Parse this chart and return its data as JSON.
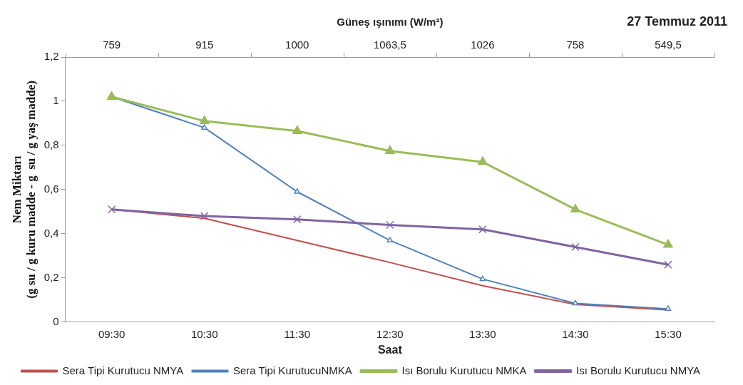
{
  "chart_data": {
    "type": "line",
    "title": "27 Temmuz 2011",
    "xlabel": "Saat",
    "ylabel": "Nem Miktarı\n(g su / g kuru madde - g  su / g yaş madde)",
    "x2label": "Güneş ışınımı (W/m²)",
    "categories": [
      "09:30",
      "10:30",
      "11:30",
      "12:30",
      "13:30",
      "14:30",
      "15:30"
    ],
    "series": [
      {
        "name": "Sera Tipi Kurutucu NMYA",
        "color": "#c0504d",
        "marker": "none",
        "values": [
          0.51,
          0.47,
          0.37,
          0.27,
          0.165,
          0.08,
          0.055
        ]
      },
      {
        "name": "Sera Tipi KurutucuNMKA",
        "color": "#4f81bd",
        "marker": "triangle",
        "values": [
          1.02,
          0.88,
          0.59,
          0.37,
          0.195,
          0.085,
          0.06
        ]
      },
      {
        "name": "Isı Borulu Kurutucu NMKA",
        "color": "#9bbb59",
        "marker": "triangle",
        "values": [
          1.02,
          0.91,
          0.865,
          0.775,
          0.725,
          0.51,
          0.35
        ]
      },
      {
        "name": "Isı Borulu Kurutucu NMYA",
        "color": "#8064a2",
        "marker": "cross",
        "values": [
          0.51,
          0.48,
          0.465,
          0.44,
          0.42,
          0.34,
          0.26
        ]
      }
    ],
    "annotations": [
      "759",
      "915",
      "1000",
      "1063,5",
      "1026",
      "758",
      "549,5"
    ],
    "ylim": [
      0,
      1.2
    ],
    "yticks": [
      {
        "value": 0,
        "label": "0"
      },
      {
        "value": 0.2,
        "label": "0,2"
      },
      {
        "value": 0.4,
        "label": "0,4"
      },
      {
        "value": 0.6,
        "label": "0,6"
      },
      {
        "value": 0.8,
        "label": "0,8"
      },
      {
        "value": 1,
        "label": "1"
      },
      {
        "value": 1.2,
        "label": "1,2"
      }
    ],
    "grid": false,
    "legend": "bottom"
  }
}
